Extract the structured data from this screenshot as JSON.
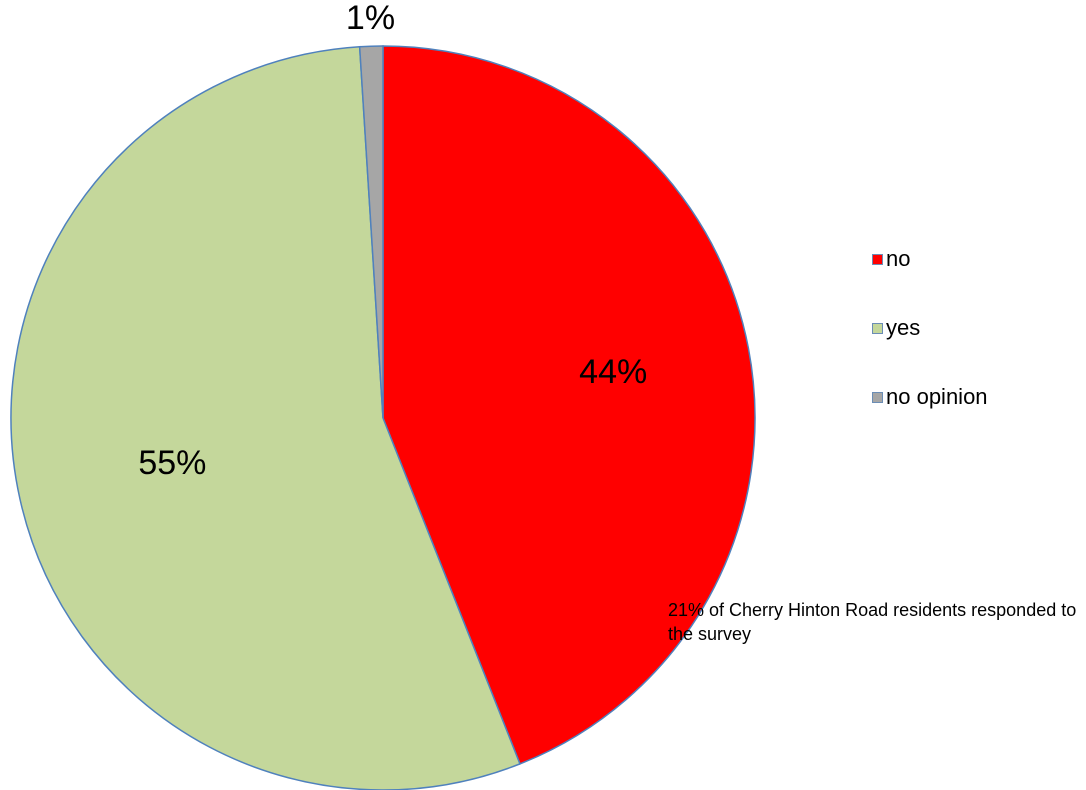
{
  "chart_data": {
    "type": "pie",
    "categories": [
      "no",
      "yes",
      "no opinion"
    ],
    "values": [
      44,
      55,
      1
    ],
    "data_labels": [
      "44%",
      "55%",
      "1%"
    ],
    "colors": [
      "#ff0000",
      "#c4d79b",
      "#a6a6a6"
    ],
    "edge_color": "#4f81bd",
    "legend": {
      "placement": "right",
      "items": [
        {
          "label": "no",
          "color": "#ff0000"
        },
        {
          "label": "yes",
          "color": "#c4d79b"
        },
        {
          "label": "no opinion",
          "color": "#a6a6a6"
        }
      ]
    },
    "annotation": "21% of Cherry Hinton Road residents responded to the survey"
  }
}
